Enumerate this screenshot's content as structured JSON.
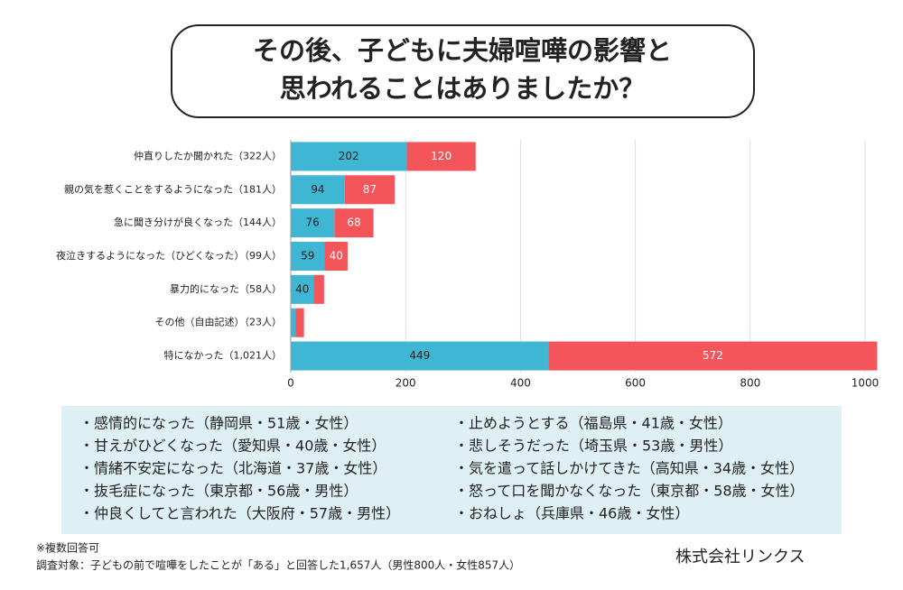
{
  "title": [
    "その後、子どもに夫婦喧嘩の影響と",
    "思われることはありましたか？"
  ],
  "chart_data": {
    "type": "stacked-bar-horizontal",
    "categories": [
      "仲直りしたか聞かれた（322人）",
      "親の気を惹くことをするようになった（181人）",
      "急に聞き分けが良くなった（144人）",
      "夜泣きするようになった（ひどくなった）（99人）",
      "暴力的になった（58人）",
      "その他（自由記述）（23人）",
      "特になかった（1,021人）"
    ],
    "series": [
      {
        "color": "#3fb6d3",
        "values": [
          202,
          94,
          76,
          59,
          40,
          8,
          449
        ]
      },
      {
        "color": "#f4555a",
        "values": [
          120,
          87,
          68,
          40,
          18,
          15,
          572
        ]
      }
    ],
    "xlim": [
      0,
      1000
    ],
    "xticks": [
      0,
      200,
      400,
      600,
      800,
      1000
    ],
    "grid": true
  },
  "comments": [
    "・感情的になった（静岡県・51歳・女性）",
    "・甘えがひどくなった（愛知県・40歳・女性）",
    "・情緒不安定になった（北海道・37歳・女性）",
    "・抜毛症になった（東京都・56歳・男性）",
    "・仲良くしてと言われた（大阪府・57歳・男性）",
    "・止めようとする（福島県・41歳・女性）",
    "・悲しそうだった（埼玉県・53歳・男性）",
    "・気を遣って話しかけてきた（高知県・34歳・女性）",
    "・怒って口を聞かなくなった（東京都・58歳・女性）",
    "・おねしょ（兵庫県・46歳・女性）"
  ],
  "notes": [
    "※複数回答可",
    "調査対象：子どもの前で喧嘩をしたことが「ある」と回答した1,657人（男性800人・女性857人）"
  ],
  "company": "株式会社リンクス"
}
